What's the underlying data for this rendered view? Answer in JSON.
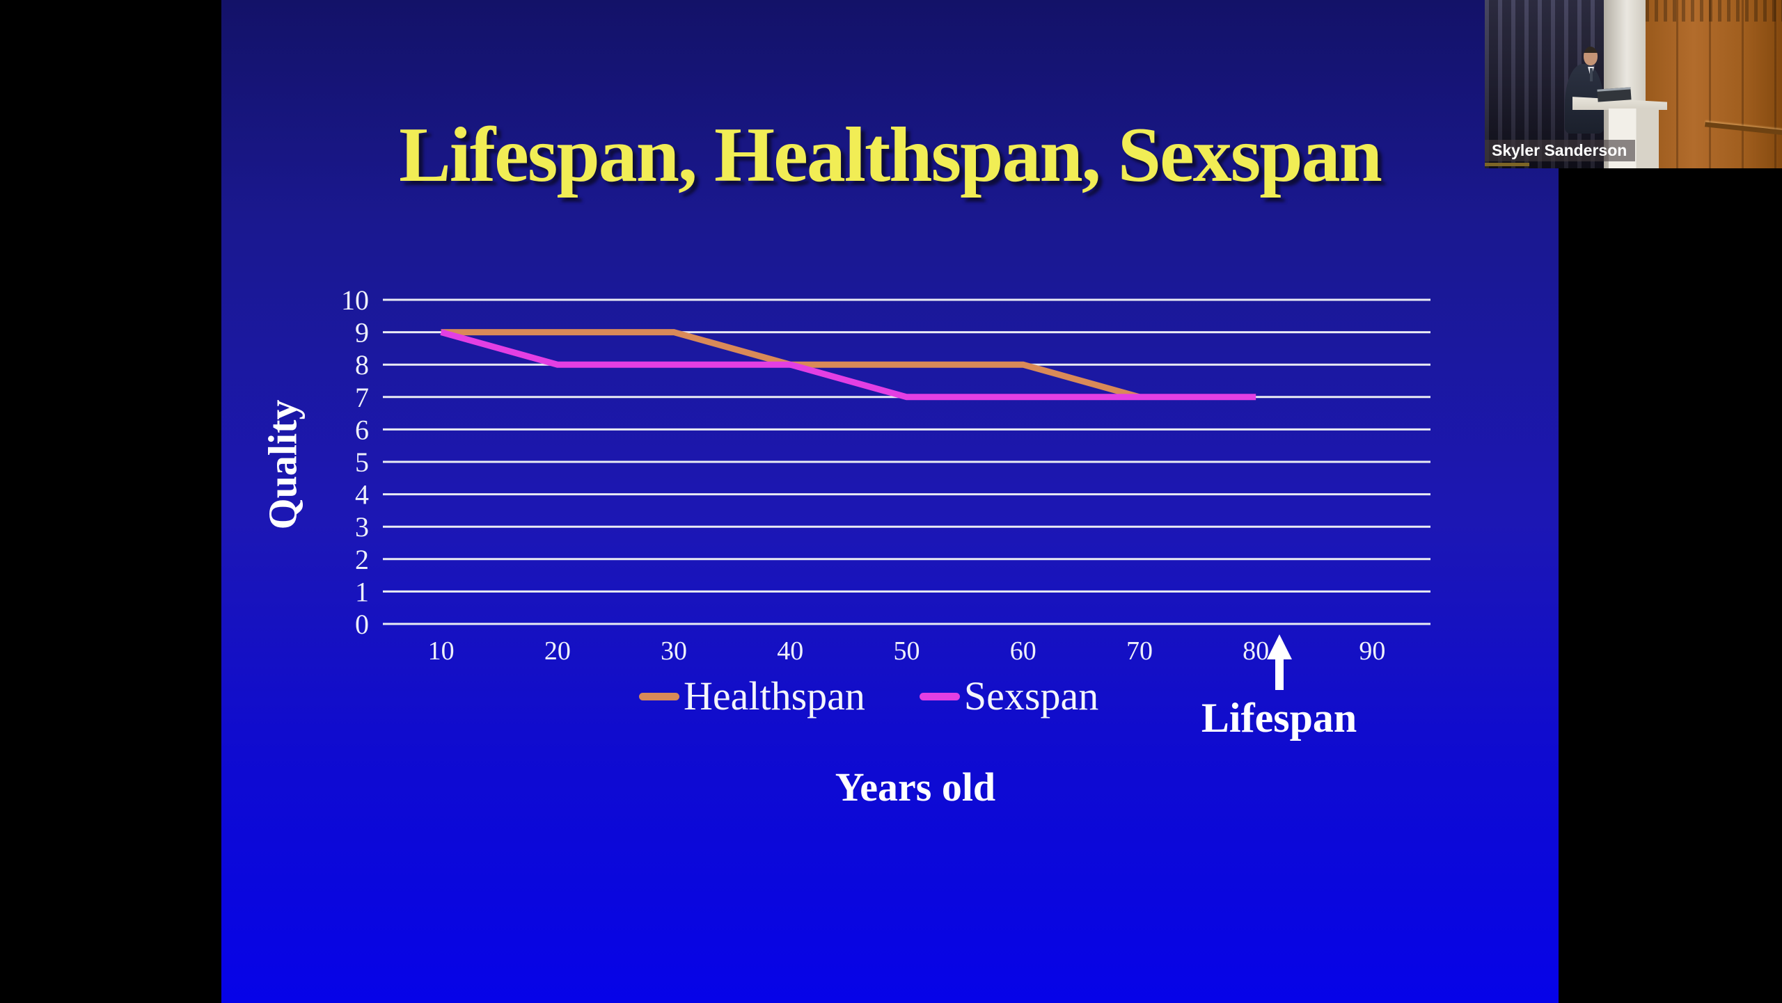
{
  "app": {
    "view": "zoom-screen-share",
    "canvas_background": "#000000"
  },
  "slide": {
    "title": "Lifespan, Healthspan, Sexspan",
    "title_color": "#f1ed55",
    "background_top": "#131268",
    "background_bottom": "#0603e8"
  },
  "chart_data": {
    "type": "line",
    "title": "Lifespan, Healthspan, Sexspan",
    "xlabel": "Years old",
    "ylabel": "Quality",
    "xlim": [
      5,
      95
    ],
    "ylim": [
      0,
      10
    ],
    "x_ticks": [
      10,
      20,
      30,
      40,
      50,
      60,
      70,
      80,
      90
    ],
    "y_ticks": [
      0,
      1,
      2,
      3,
      4,
      5,
      6,
      7,
      8,
      9,
      10
    ],
    "grid": "horizontal",
    "gridline_color": "#e9ebf4",
    "legend_position": "bottom",
    "series": [
      {
        "name": "Healthspan",
        "color": "#d98a58",
        "points": [
          [
            10,
            9
          ],
          [
            30,
            9
          ],
          [
            40,
            8
          ],
          [
            60,
            8
          ],
          [
            70,
            7
          ]
        ]
      },
      {
        "name": "Sexspan",
        "color": "#e33fe3",
        "points": [
          [
            10,
            9
          ],
          [
            20,
            8
          ],
          [
            40,
            8
          ],
          [
            50,
            7
          ],
          [
            80,
            7
          ]
        ]
      }
    ],
    "annotation": {
      "text": "Lifespan",
      "symbol": "up-arrow",
      "x": 82
    }
  },
  "participant": {
    "name": "Skyler Sanderson"
  }
}
